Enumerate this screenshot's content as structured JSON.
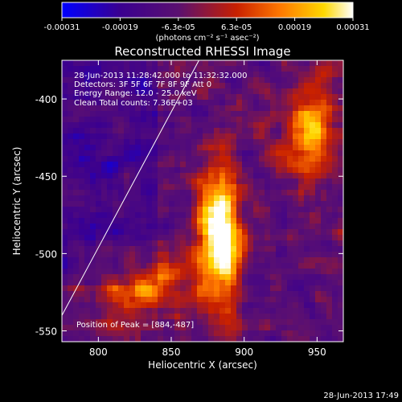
{
  "colorbar": {
    "ticks": [
      "-0.00031",
      "-0.00019",
      "-6.3e-05",
      "6.3e-05",
      "0.00019",
      "0.00031"
    ],
    "units": "(photons cm⁻² s⁻¹ asec⁻²)"
  },
  "chart_data": {
    "type": "heatmap",
    "title": "Reconstructed RHESSI Image",
    "xlabel": "Heliocentric X (arcsec)",
    "ylabel": "Heliocentric Y (arcsec)",
    "xlim": [
      775,
      968
    ],
    "ylim": [
      -557,
      -375
    ],
    "x_ticks": [
      800,
      850,
      900,
      950
    ],
    "y_ticks": [
      -400,
      -450,
      -500,
      -550
    ],
    "colormap": "red-temperature with blue negative end",
    "color_range": [
      -0.00031,
      0.00031
    ],
    "limb_line": [
      [
        775,
        -540
      ],
      [
        869,
        -375
      ]
    ],
    "features": [
      {
        "name": "bright elongated source",
        "center": [
          884,
          -487
        ],
        "peak_level": 1.0
      }
    ],
    "annotations": [
      "28-Jun-2013 11:28:42.000 to 11:32:32.000",
      "Detectors: 3F 5F 6F 7F 8F 9F  Att 0",
      "Energy Range: 12.0 - 25.0 keV",
      "Clean    Total counts: 7.36E+03"
    ],
    "peak_label": "Position of Peak = [884,-487]"
  },
  "footer": {
    "timestamp": "28-Jun-2013 17:49"
  }
}
